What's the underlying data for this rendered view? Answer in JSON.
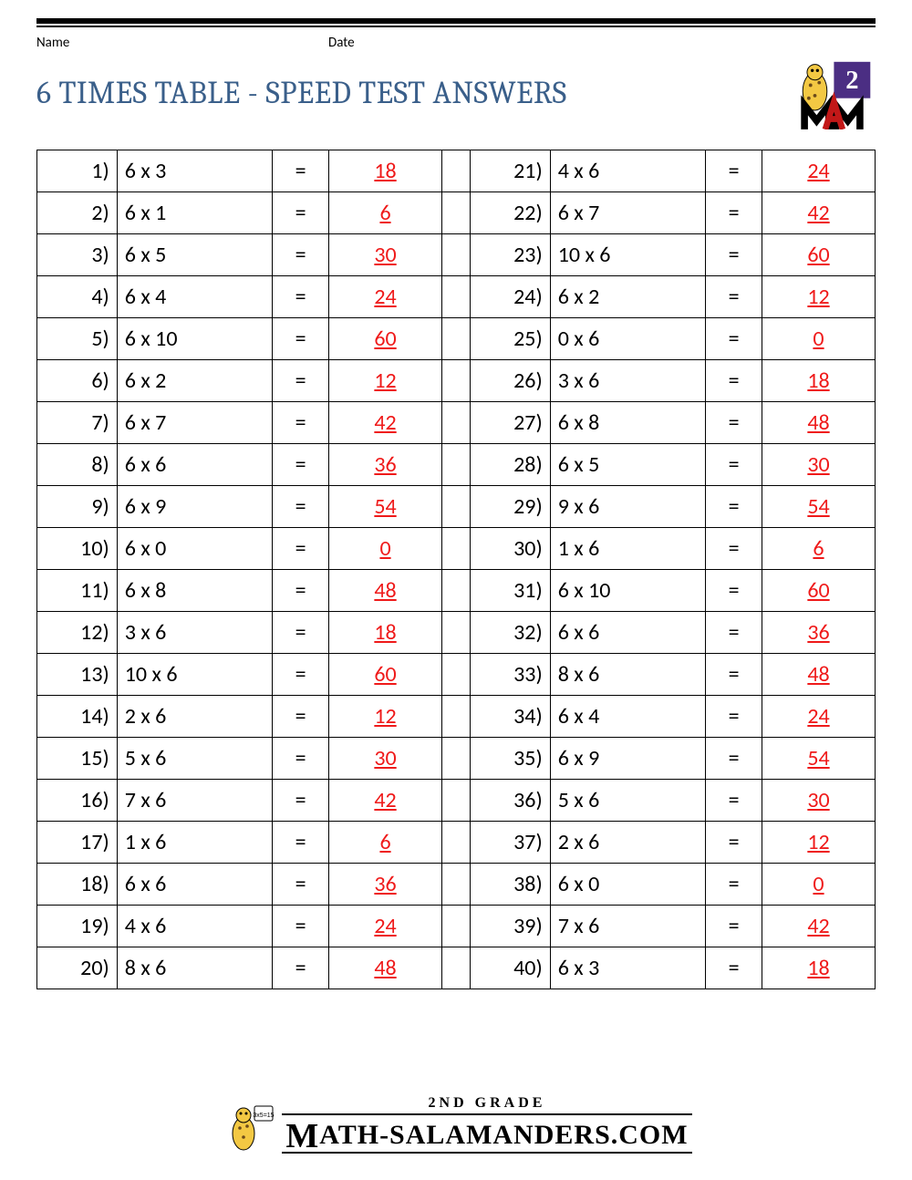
{
  "header": {
    "name_label": "Name",
    "date_label": "Date"
  },
  "title": "6 TIMES TABLE - SPEED TEST ANSWERS",
  "colors": {
    "title": "#3a5f8a",
    "answer": "#ef1a1a",
    "border": "#000000",
    "background": "#ffffff",
    "badge_purple": "#4b2e83",
    "badge_yellow": "#f3c843"
  },
  "typography": {
    "title_fontsize": 34,
    "cell_fontsize": 24,
    "header_fontsize": 15
  },
  "table": {
    "equals": "=",
    "left": [
      {
        "n": "1)",
        "p": "6 x 3",
        "a": "18"
      },
      {
        "n": "2)",
        "p": "6 x 1",
        "a": "6"
      },
      {
        "n": "3)",
        "p": "6 x 5",
        "a": "30"
      },
      {
        "n": "4)",
        "p": "6 x 4",
        "a": "24"
      },
      {
        "n": "5)",
        "p": "6 x 10",
        "a": "60"
      },
      {
        "n": "6)",
        "p": "6 x 2",
        "a": "12"
      },
      {
        "n": "7)",
        "p": "6 x 7",
        "a": "42"
      },
      {
        "n": "8)",
        "p": "6 x 6",
        "a": "36"
      },
      {
        "n": "9)",
        "p": "6 x 9",
        "a": "54"
      },
      {
        "n": "10)",
        "p": "6 x 0",
        "a": "0"
      },
      {
        "n": "11)",
        "p": "6 x 8",
        "a": "48"
      },
      {
        "n": "12)",
        "p": "3 x 6",
        "a": "18"
      },
      {
        "n": "13)",
        "p": "10 x 6",
        "a": "60"
      },
      {
        "n": "14)",
        "p": "2 x 6",
        "a": "12"
      },
      {
        "n": "15)",
        "p": "5 x 6",
        "a": "30"
      },
      {
        "n": "16)",
        "p": "7 x 6",
        "a": "42"
      },
      {
        "n": "17)",
        "p": "1 x 6",
        "a": "6"
      },
      {
        "n": "18)",
        "p": "6 x 6",
        "a": "36"
      },
      {
        "n": "19)",
        "p": "4 x 6",
        "a": "24"
      },
      {
        "n": "20)",
        "p": "8 x 6",
        "a": "48"
      }
    ],
    "right": [
      {
        "n": "21)",
        "p": "4 x 6",
        "a": "24"
      },
      {
        "n": "22)",
        "p": "6 x 7",
        "a": "42"
      },
      {
        "n": "23)",
        "p": "10 x 6",
        "a": "60"
      },
      {
        "n": "24)",
        "p": "6 x 2",
        "a": "12"
      },
      {
        "n": "25)",
        "p": "0 x 6",
        "a": "0"
      },
      {
        "n": "26)",
        "p": "3 x 6",
        "a": "18"
      },
      {
        "n": "27)",
        "p": "6 x 8",
        "a": "48"
      },
      {
        "n": "28)",
        "p": "6 x 5",
        "a": "30"
      },
      {
        "n": "29)",
        "p": "9 x 6",
        "a": "54"
      },
      {
        "n": "30)",
        "p": "1 x 6",
        "a": "6"
      },
      {
        "n": "31)",
        "p": "6 x 10",
        "a": "60"
      },
      {
        "n": "32)",
        "p": "6 x 6",
        "a": "36"
      },
      {
        "n": "33)",
        "p": "8 x 6",
        "a": "48"
      },
      {
        "n": "34)",
        "p": "6 x 4",
        "a": "24"
      },
      {
        "n": "35)",
        "p": "6 x 9",
        "a": "54"
      },
      {
        "n": "36)",
        "p": "5 x 6",
        "a": "30"
      },
      {
        "n": "37)",
        "p": "2 x 6",
        "a": "12"
      },
      {
        "n": "38)",
        "p": "6 x 0",
        "a": "0"
      },
      {
        "n": "39)",
        "p": "7 x 6",
        "a": "42"
      },
      {
        "n": "40)",
        "p": "6 x 3",
        "a": "18"
      }
    ]
  },
  "footer": {
    "line1": "2ND GRADE",
    "line2": "ATH-SALAMANDERS.COM",
    "line2_prefix_glyph": "M",
    "card_text": "3x5=15"
  },
  "badge": {
    "number": "2"
  }
}
